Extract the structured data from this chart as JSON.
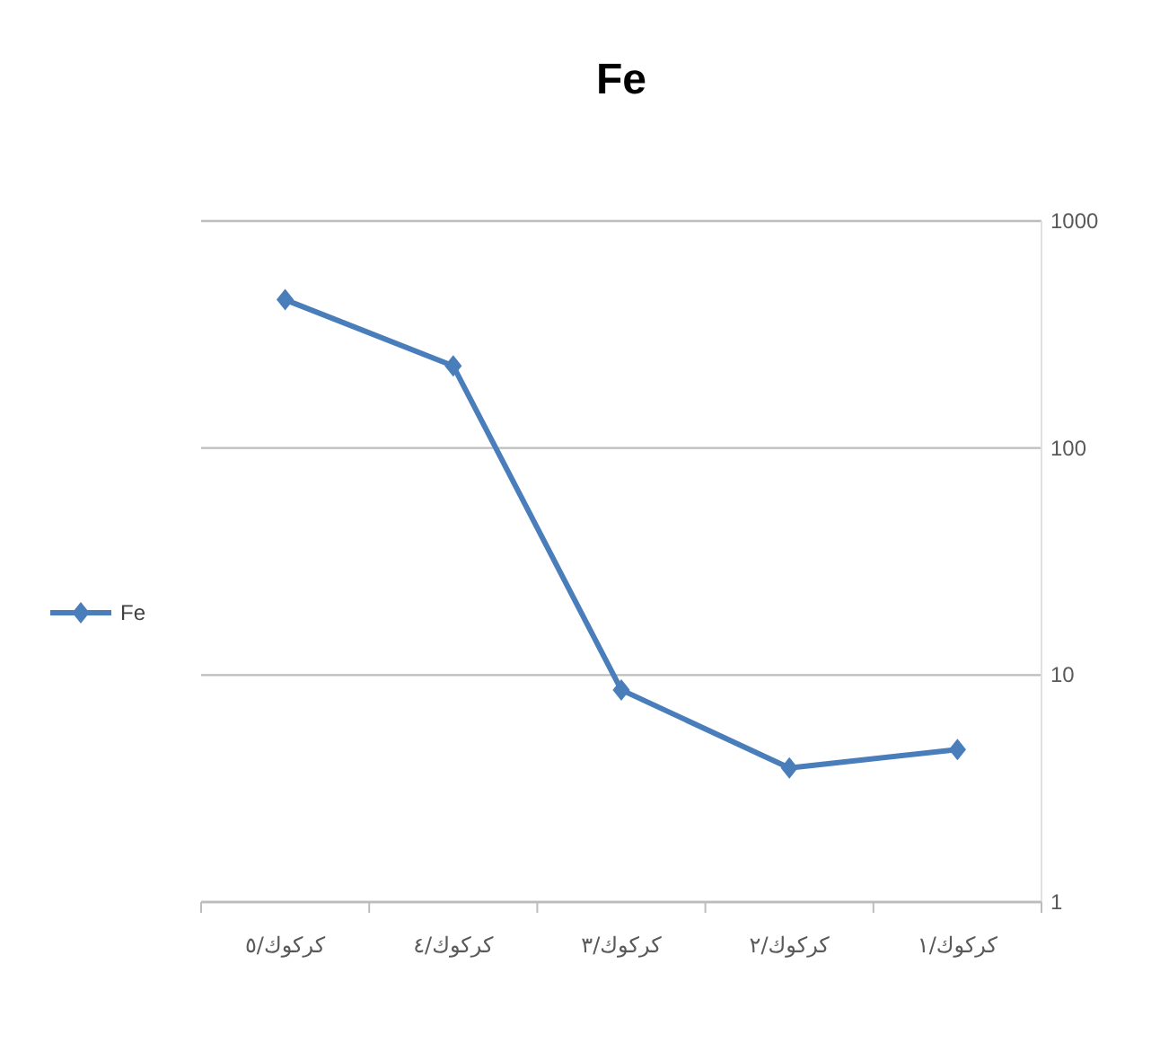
{
  "chart_data": {
    "type": "line",
    "title": "Fe",
    "categories": [
      "كركوك/٥",
      "كركوك/٤",
      "كركوك/٣",
      "كركوك/٢",
      "كركوك/١"
    ],
    "series": [
      {
        "name": "Fe",
        "color": "#4a7ebb",
        "values": [
          450,
          230,
          8.6,
          3.9,
          4.7
        ]
      }
    ],
    "log": "y",
    "ylim": [
      1,
      1000
    ],
    "yticks": [
      1,
      10,
      100,
      1000
    ],
    "grid": "y",
    "legend": "left",
    "marker": "diamond",
    "line_style": "solid"
  }
}
